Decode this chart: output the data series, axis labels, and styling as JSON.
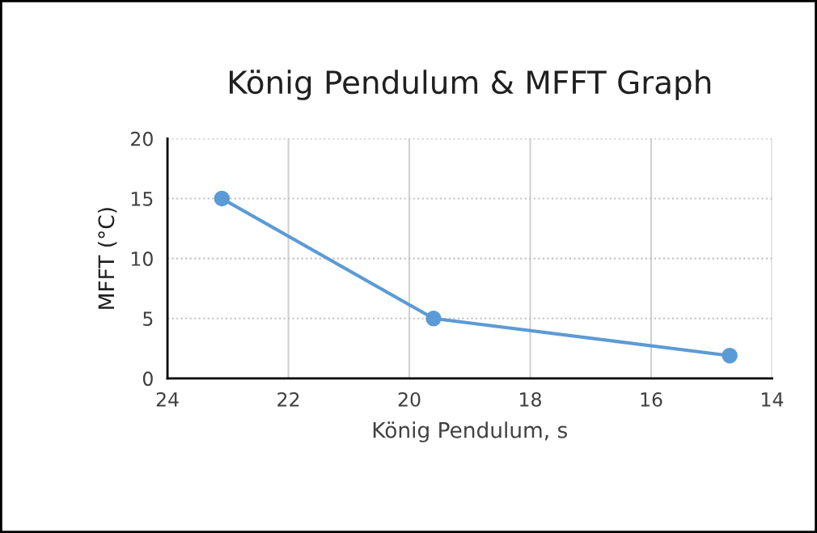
{
  "chart_data": {
    "type": "line",
    "title": "König Pendulum & MFFT Graph",
    "xlabel": "König Pendulum, s",
    "ylabel": "MFFT (°C)",
    "x": [
      23.1,
      19.6,
      14.7
    ],
    "series": [
      {
        "color": "#5b9bd5",
        "values": [
          15,
          5,
          1.9
        ]
      }
    ],
    "xlim": [
      24,
      14
    ],
    "xticks": [
      24,
      22,
      20,
      18,
      16,
      14
    ],
    "ylim": [
      0,
      20
    ],
    "yticks": [
      0,
      5,
      10,
      15,
      20
    ],
    "grid": true,
    "marker": "circle",
    "line_style": "solid"
  }
}
